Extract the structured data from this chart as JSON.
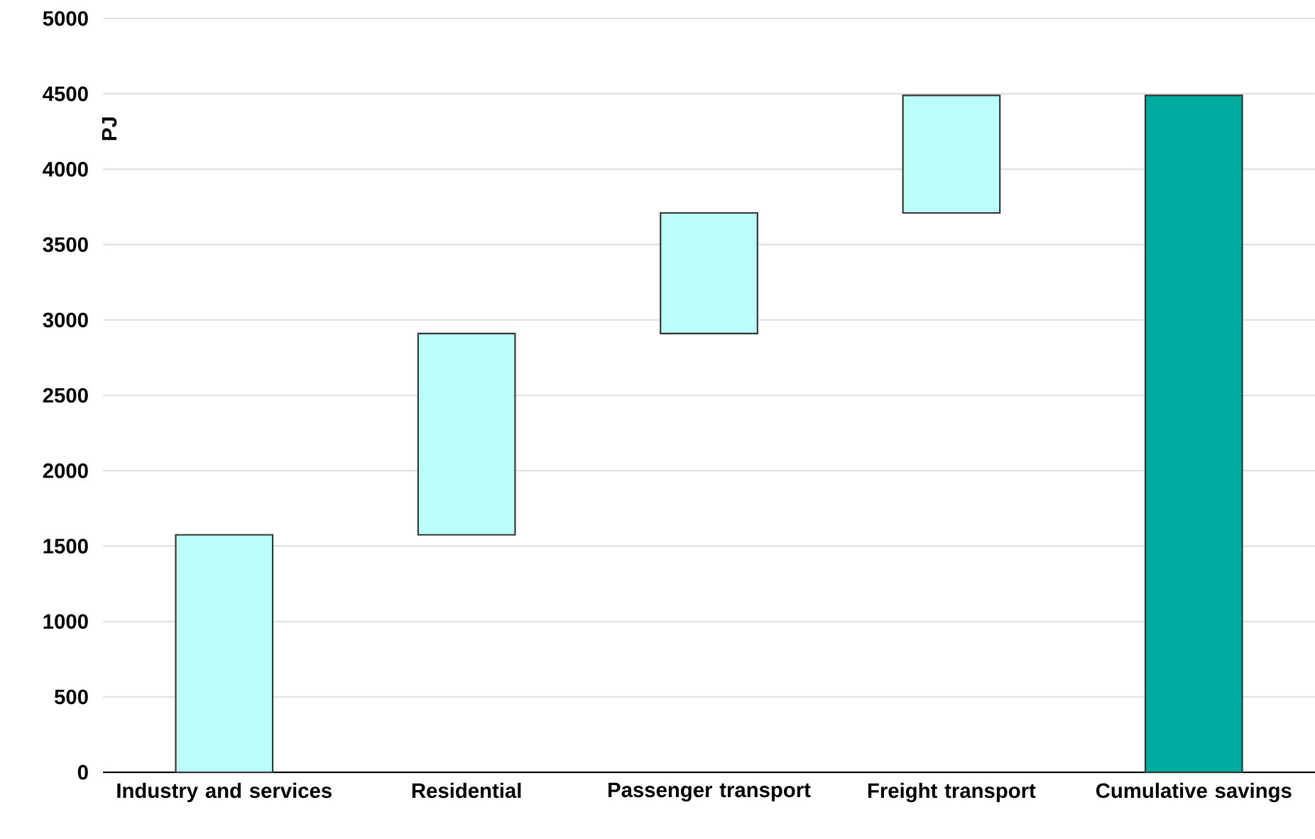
{
  "chart_data": {
    "type": "bar",
    "ylabel": "PJ",
    "categories": [
      "Industry and services",
      "Residential",
      "Passenger transport",
      "Freight transport",
      "Cumulative savings"
    ],
    "values": [
      1575,
      1335,
      800,
      780,
      4490
    ],
    "base": [
      0,
      1575,
      2910,
      3710,
      0
    ],
    "colors": [
      "#bbfdf8",
      "#bbfdf8",
      "#bbfdf8",
      "#bbfdf8",
      "#00ab9f"
    ],
    "ylim": [
      0,
      5000
    ],
    "yticks": [
      0,
      500,
      1000,
      1500,
      2000,
      2500,
      3000,
      3500,
      4000,
      4500,
      5000
    ],
    "grid": "y"
  }
}
